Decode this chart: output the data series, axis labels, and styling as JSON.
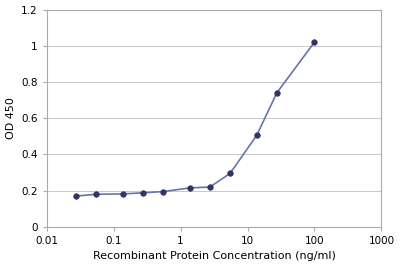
{
  "x_data": [
    0.0274,
    0.0548,
    0.137,
    0.274,
    0.548,
    1.37,
    2.74,
    5.48,
    13.7,
    27.4,
    100.0
  ],
  "y_data": [
    0.17,
    0.18,
    0.182,
    0.188,
    0.195,
    0.215,
    0.22,
    0.295,
    0.505,
    0.74,
    1.02
  ],
  "line_color": "#6675aa",
  "marker_color": "#333366",
  "xlabel": "Recombinant Protein Concentration (ng/ml)",
  "ylabel": "OD 450",
  "xlim": [
    0.01,
    1000
  ],
  "ylim": [
    0,
    1.2
  ],
  "yticks": [
    0,
    0.2,
    0.4,
    0.6,
    0.8,
    1.0,
    1.2
  ],
  "ytick_labels": [
    "0",
    "0.2",
    "0.4",
    "0.6",
    "0.8",
    "1",
    "1.2"
  ],
  "xtick_labels": [
    "0.01",
    "0.1",
    "1",
    "10",
    "100",
    "1000"
  ],
  "xtick_positions": [
    0.01,
    0.1,
    1,
    10,
    100,
    1000
  ],
  "background_color": "#ffffff",
  "grid_color": "#c8c8c8",
  "spine_color": "#aaaaaa",
  "marker_size": 4,
  "line_width": 1.2,
  "font_size_label": 8,
  "font_size_tick": 7.5
}
